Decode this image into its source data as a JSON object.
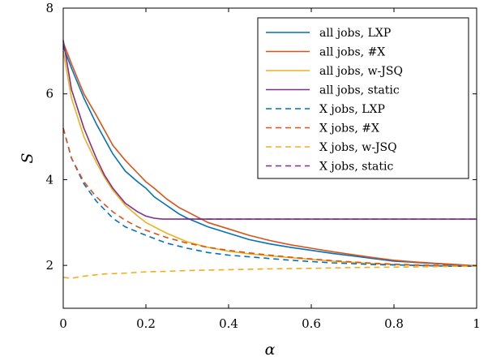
{
  "chart_data": {
    "type": "line",
    "xlabel": "α",
    "ylabel": "S",
    "xlim": [
      0,
      1
    ],
    "ylim": [
      1,
      8
    ],
    "xticks": [
      "0",
      "0.2",
      "0.4",
      "0.6",
      "0.8",
      "1"
    ],
    "xtick_values": [
      0,
      0.2,
      0.4,
      0.6,
      0.8,
      1
    ],
    "yticks": [
      "2",
      "4",
      "6",
      "8"
    ],
    "ytick_values": [
      2,
      4,
      6,
      8
    ],
    "grid": false,
    "legend_position": "top-right",
    "series": [
      {
        "name": "all jobs, LXP",
        "color": "#0072bd",
        "dash": "solid",
        "x": [
          0,
          0.02,
          0.05,
          0.08,
          0.1,
          0.12,
          0.15,
          0.18,
          0.2,
          0.22,
          0.25,
          0.28,
          0.3,
          0.35,
          0.4,
          0.45,
          0.5,
          0.55,
          0.6,
          0.65,
          0.7,
          0.75,
          0.8,
          0.85,
          0.9,
          0.95,
          1.0
        ],
        "y": [
          7.1,
          6.6,
          5.9,
          5.3,
          4.95,
          4.6,
          4.2,
          3.95,
          3.8,
          3.6,
          3.4,
          3.2,
          3.1,
          2.9,
          2.75,
          2.6,
          2.5,
          2.42,
          2.35,
          2.28,
          2.22,
          2.16,
          2.1,
          2.07,
          2.04,
          2.01,
          1.98
        ]
      },
      {
        "name": "all jobs, #X",
        "color": "#d95319",
        "dash": "solid",
        "x": [
          0,
          0.02,
          0.05,
          0.08,
          0.1,
          0.12,
          0.15,
          0.18,
          0.2,
          0.22,
          0.25,
          0.28,
          0.3,
          0.35,
          0.4,
          0.45,
          0.5,
          0.55,
          0.6,
          0.65,
          0.7,
          0.75,
          0.8,
          0.85,
          0.9,
          0.95,
          1.0
        ],
        "y": [
          7.2,
          6.7,
          6.0,
          5.5,
          5.15,
          4.8,
          4.45,
          4.15,
          3.95,
          3.8,
          3.55,
          3.35,
          3.25,
          3.0,
          2.85,
          2.7,
          2.58,
          2.48,
          2.4,
          2.32,
          2.25,
          2.18,
          2.12,
          2.08,
          2.05,
          2.02,
          1.99
        ]
      },
      {
        "name": "all jobs, w-JSQ",
        "color": "#edb120",
        "dash": "solid",
        "x": [
          0,
          0.02,
          0.05,
          0.08,
          0.1,
          0.12,
          0.15,
          0.18,
          0.2,
          0.25,
          0.3,
          0.35,
          0.4,
          0.45,
          0.5,
          0.55,
          0.6,
          0.65,
          0.7,
          0.75,
          0.8,
          0.85,
          0.9,
          0.95,
          1.0
        ],
        "y": [
          7.0,
          5.9,
          5.0,
          4.4,
          4.05,
          3.75,
          3.4,
          3.15,
          3.0,
          2.75,
          2.55,
          2.42,
          2.33,
          2.27,
          2.22,
          2.18,
          2.14,
          2.1,
          2.07,
          2.04,
          2.02,
          2.0,
          1.99,
          1.98,
          1.98
        ]
      },
      {
        "name": "all jobs, static",
        "color": "#7e2f8e",
        "dash": "solid",
        "x": [
          0,
          0.02,
          0.05,
          0.08,
          0.1,
          0.12,
          0.15,
          0.18,
          0.2,
          0.22,
          0.24,
          0.26,
          0.3,
          0.4,
          0.5,
          0.6,
          0.7,
          0.8,
          0.9,
          1.0
        ],
        "y": [
          7.25,
          6.1,
          5.2,
          4.5,
          4.1,
          3.8,
          3.45,
          3.25,
          3.15,
          3.1,
          3.08,
          3.08,
          3.08,
          3.08,
          3.08,
          3.08,
          3.08,
          3.08,
          3.08,
          3.08
        ]
      },
      {
        "name": "X jobs, LXP",
        "color": "#0072bd",
        "dash": "dashed",
        "x": [
          0,
          0.02,
          0.05,
          0.08,
          0.1,
          0.12,
          0.15,
          0.18,
          0.2,
          0.25,
          0.3,
          0.35,
          0.4,
          0.45,
          0.5,
          0.55,
          0.6,
          0.65,
          0.7,
          0.75,
          0.8,
          0.85,
          0.9,
          0.95,
          1.0
        ],
        "y": [
          5.2,
          4.5,
          3.9,
          3.5,
          3.3,
          3.1,
          2.9,
          2.78,
          2.7,
          2.52,
          2.4,
          2.3,
          2.24,
          2.2,
          2.16,
          2.12,
          2.09,
          2.06,
          2.04,
          2.02,
          2.01,
          2.0,
          1.99,
          1.98,
          1.98
        ]
      },
      {
        "name": "X jobs, #X",
        "color": "#d95319",
        "dash": "dashed",
        "x": [
          0,
          0.02,
          0.05,
          0.08,
          0.1,
          0.12,
          0.15,
          0.18,
          0.2,
          0.25,
          0.3,
          0.35,
          0.4,
          0.45,
          0.5,
          0.55,
          0.6,
          0.65,
          0.7,
          0.75,
          0.8,
          0.85,
          0.9,
          0.95,
          1.0
        ],
        "y": [
          5.2,
          4.5,
          3.95,
          3.6,
          3.42,
          3.25,
          3.05,
          2.9,
          2.82,
          2.65,
          2.52,
          2.42,
          2.35,
          2.29,
          2.24,
          2.19,
          2.15,
          2.11,
          2.08,
          2.05,
          2.03,
          2.01,
          2.0,
          1.99,
          1.98
        ]
      },
      {
        "name": "X jobs, w-JSQ",
        "color": "#edb120",
        "dash": "dashed",
        "x": [
          0,
          0.02,
          0.05,
          0.1,
          0.15,
          0.2,
          0.25,
          0.3,
          0.4,
          0.5,
          0.6,
          0.7,
          0.8,
          0.9,
          0.95,
          1.0
        ],
        "y": [
          1.72,
          1.7,
          1.75,
          1.8,
          1.82,
          1.85,
          1.86,
          1.88,
          1.9,
          1.92,
          1.93,
          1.95,
          1.96,
          1.97,
          1.98,
          1.98
        ]
      },
      {
        "name": "X jobs, static",
        "color": "#7e2f8e",
        "dash": "dashed",
        "x": [
          0.3,
          0.4,
          0.5,
          0.6,
          0.7,
          0.8,
          0.9,
          1.0
        ],
        "y": [
          3.08,
          3.08,
          3.08,
          3.08,
          3.08,
          3.08,
          3.08,
          3.08
        ]
      }
    ]
  }
}
